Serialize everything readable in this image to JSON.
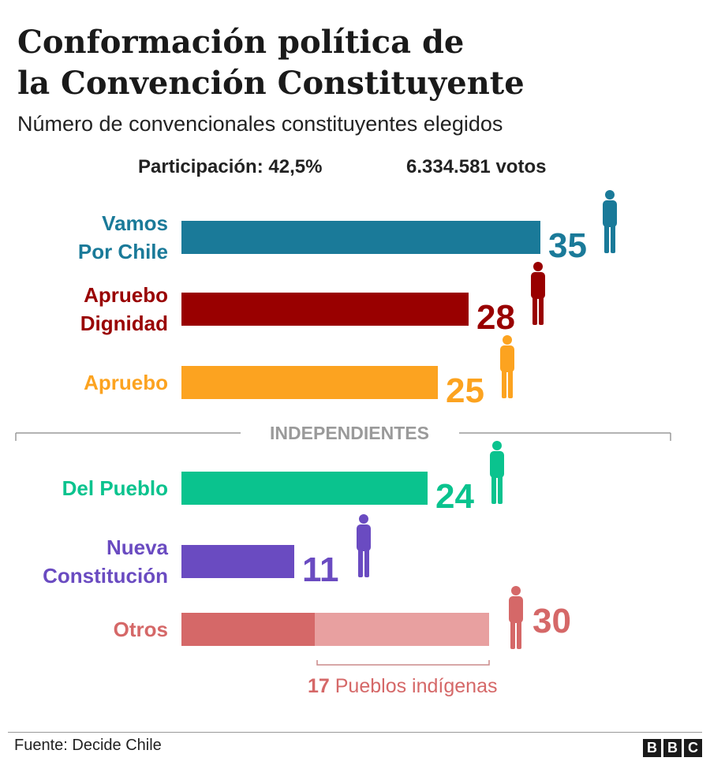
{
  "header": {
    "title_line1": "Conformación política de",
    "title_line2": "la Convención Constituyente",
    "subtitle": "Número de convencionales constituyentes elegidos",
    "participation": "Participación: 42,5%",
    "votes": "6.334.581 votos"
  },
  "chart_data": {
    "type": "bar",
    "orientation": "horizontal",
    "xlim": [
      0,
      35
    ],
    "groups": [
      {
        "label": "",
        "categories": [
          "Vamos Por Chile",
          "Apruebo Dignidad",
          "Apruebo"
        ]
      },
      {
        "label": "INDEPENDIENTES",
        "categories": [
          "Del Pueblo",
          "Nueva Constitución",
          "Otros"
        ]
      }
    ],
    "bars": [
      {
        "category": "Vamos Por Chile",
        "label_lines": [
          "Vamos",
          "Por Chile"
        ],
        "value": 35,
        "value_label": "35",
        "color": "#1a7a99"
      },
      {
        "category": "Apruebo Dignidad",
        "label_lines": [
          "Apruebo",
          "Dignidad"
        ],
        "value": 28,
        "value_label": "28",
        "color": "#990000"
      },
      {
        "category": "Apruebo",
        "label_lines": [
          "Apruebo"
        ],
        "value": 25,
        "value_label": "25",
        "color": "#fca320"
      },
      {
        "category": "Del Pueblo",
        "label_lines": [
          "Del Pueblo"
        ],
        "value": 24,
        "value_label": "24",
        "color": "#0ac38e"
      },
      {
        "category": "Nueva Constitución",
        "label_lines": [
          "Nueva",
          "Constitución"
        ],
        "value": 11,
        "value_label": "11",
        "color": "#6a4bc1"
      },
      {
        "category": "Otros",
        "label_lines": [
          "Otros"
        ],
        "value": 30,
        "value_label": "30",
        "color": "#d56868",
        "segments": [
          {
            "name": "",
            "value": 13,
            "color": "#d56868"
          },
          {
            "name": "Pueblos indígenas",
            "value": 17,
            "color": "#e8a0a0"
          }
        ],
        "sub_annotation": {
          "number": "17",
          "text": " Pueblos indígenas"
        }
      }
    ]
  },
  "footer": {
    "source": "Fuente: Decide Chile",
    "logo_letters": [
      "B",
      "B",
      "C"
    ]
  }
}
